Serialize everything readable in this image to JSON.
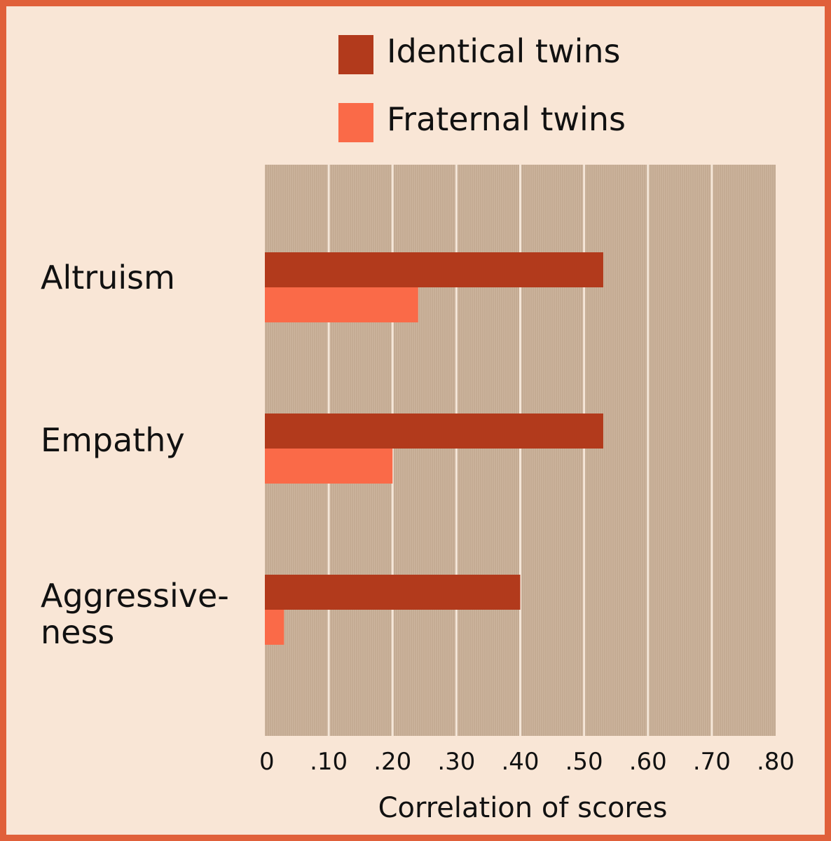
{
  "chart_data": {
    "type": "bar",
    "orientation": "horizontal",
    "categories": [
      "Altruism",
      "Empathy",
      "Aggressive-\nness"
    ],
    "series": [
      {
        "name": "Identical twins",
        "color": "#b23a1c",
        "values": [
          0.53,
          0.53,
          0.4
        ]
      },
      {
        "name": "Fraternal twins",
        "color": "#fa6a48",
        "values": [
          0.24,
          0.2,
          0.03
        ]
      }
    ],
    "xlabel": "Correlation of scores",
    "xlim": [
      0,
      0.8
    ],
    "xticks": [
      0,
      0.1,
      0.2,
      0.3,
      0.4,
      0.5,
      0.6,
      0.7,
      0.8
    ],
    "xtick_labels": [
      "0",
      ".10",
      ".20",
      ".30",
      ".40",
      ".50",
      ".60",
      ".70",
      ".80"
    ],
    "grid": true,
    "legend_position": "top-right",
    "background_color": "#f9e6d6",
    "plot_background_color": "#c4ab93",
    "border_color": "#e0603a"
  }
}
